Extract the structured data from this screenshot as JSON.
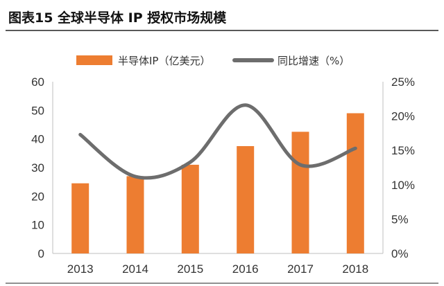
{
  "figure": {
    "title": "图表15   全球半导体 IP 授权市场规模"
  },
  "chart_data": {
    "type": "bar",
    "categories": [
      "2013",
      "2014",
      "2015",
      "2016",
      "2017",
      "2018"
    ],
    "series": [
      {
        "name": "半导体IP（亿美元）",
        "kind": "bar",
        "axis": "left",
        "color": "#ED7D31",
        "values": [
          24.5,
          27.0,
          31.0,
          37.5,
          42.5,
          49.0
        ]
      },
      {
        "name": "同比增速（%）",
        "kind": "line",
        "axis": "right",
        "color": "#6D6D6D",
        "values": [
          17.3,
          11.2,
          13.3,
          21.6,
          12.9,
          15.3
        ]
      }
    ],
    "y_left": {
      "min": 0,
      "max": 60,
      "ticks": [
        "0",
        "10",
        "20",
        "30",
        "40",
        "50",
        "60"
      ]
    },
    "y_right": {
      "min": 0,
      "max": 25,
      "ticks": [
        "0%",
        "5%",
        "10%",
        "15%",
        "20%",
        "25%"
      ]
    },
    "legend_position": "top",
    "grid": false
  }
}
